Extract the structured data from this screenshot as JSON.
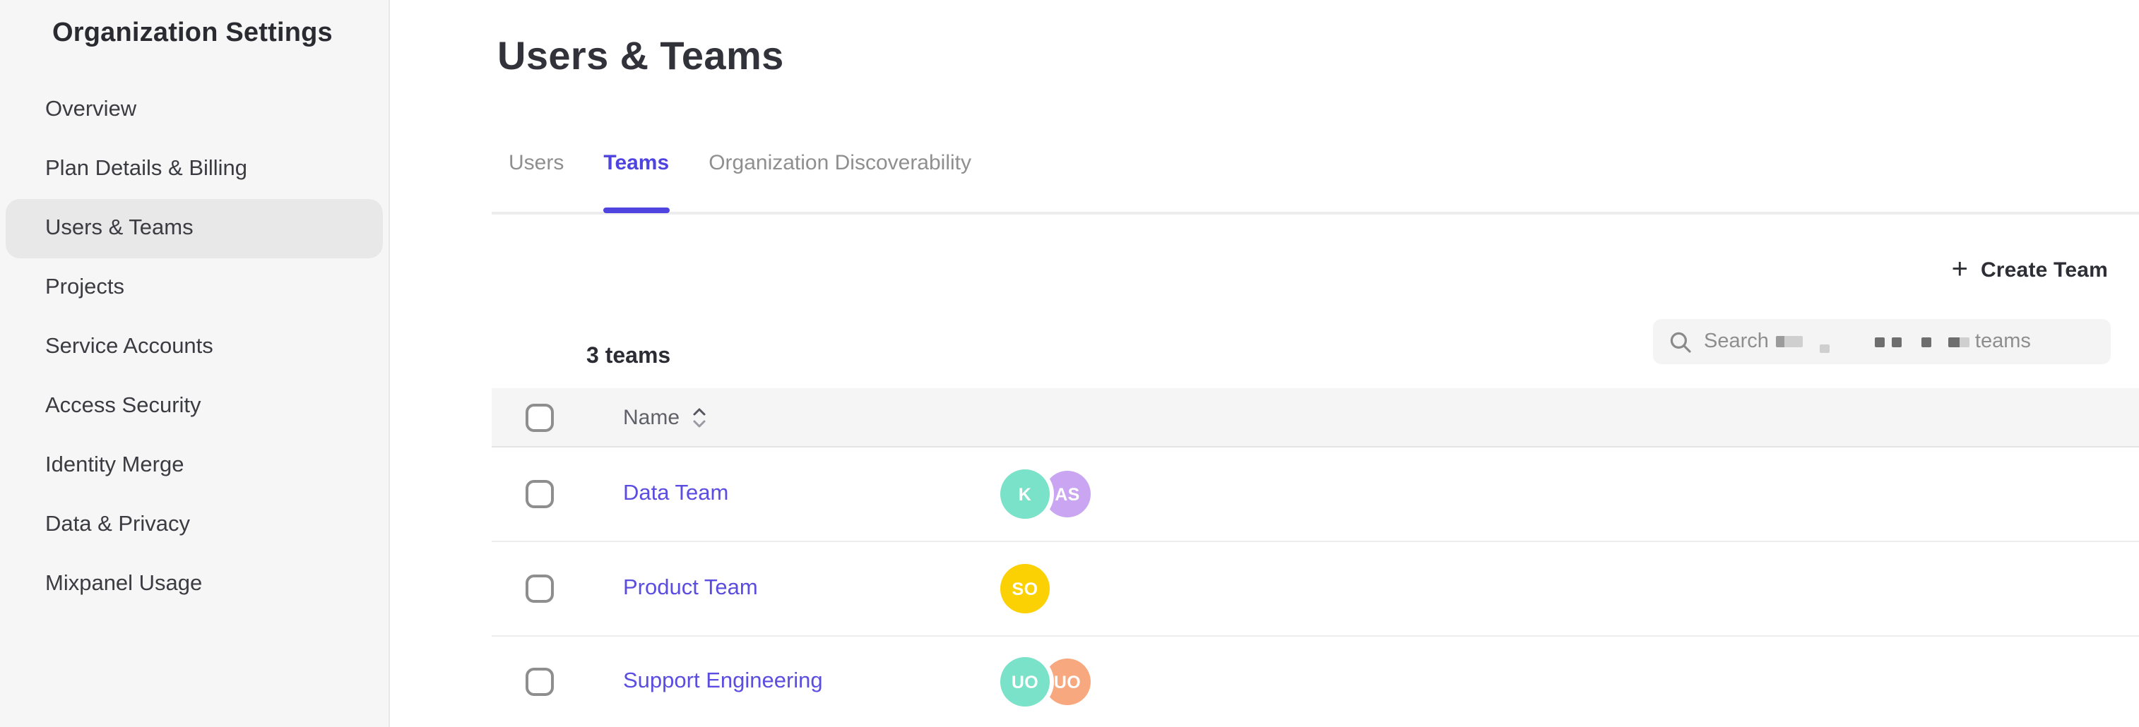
{
  "sidebar": {
    "title": "Organization Settings",
    "items": [
      {
        "label": "Overview",
        "selected": false
      },
      {
        "label": "Plan Details & Billing",
        "selected": false
      },
      {
        "label": "Users & Teams",
        "selected": true
      },
      {
        "label": "Projects",
        "selected": false
      },
      {
        "label": "Service Accounts",
        "selected": false
      },
      {
        "label": "Access Security",
        "selected": false
      },
      {
        "label": "Identity Merge",
        "selected": false
      },
      {
        "label": "Data & Privacy",
        "selected": false
      },
      {
        "label": "Mixpanel Usage",
        "selected": false
      }
    ]
  },
  "main": {
    "title": "Users & Teams",
    "tabs": [
      {
        "label": "Users",
        "active": false
      },
      {
        "label": "Teams",
        "active": true
      },
      {
        "label": "Organization Discoverability",
        "active": false
      }
    ],
    "create_team": {
      "plus": "+",
      "label": "Create Team"
    },
    "count_label": "3 teams",
    "search": {
      "prefix": "Search",
      "suffix": "teams",
      "redacted": true
    },
    "table": {
      "name_header": "Name",
      "rows": [
        {
          "name": "Data Team",
          "avatars": [
            {
              "initials": "K",
              "color": "#79E2C8"
            },
            {
              "initials": "AS",
              "color": "#C9A5F2"
            }
          ]
        },
        {
          "name": "Product Team",
          "avatars": [
            {
              "initials": "SO",
              "color": "#FBD104"
            }
          ]
        },
        {
          "name": "Support Engineering",
          "avatars": [
            {
              "initials": "UO",
              "color": "#79E2C8"
            },
            {
              "initials": "UO",
              "color": "#F8A87E"
            }
          ]
        }
      ]
    }
  },
  "colors": {
    "accent": "#5044E0",
    "link": "#5A4DE0",
    "sidebar_bg": "#F6F6F6",
    "header_row_bg": "#F5F5F5"
  }
}
